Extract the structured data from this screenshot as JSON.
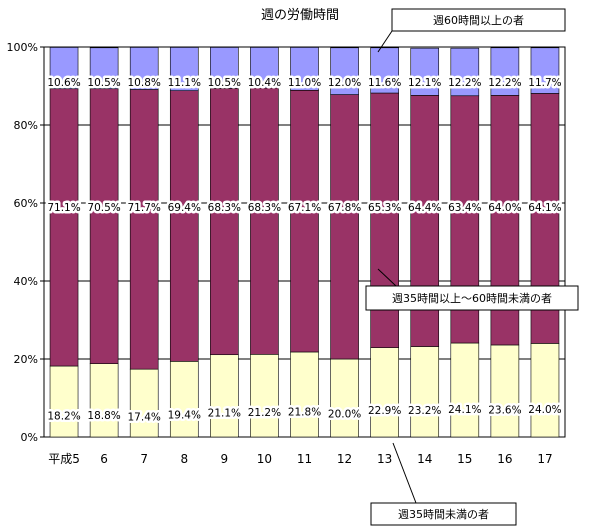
{
  "chart_data": {
    "type": "bar",
    "stacked": true,
    "percent": true,
    "title": "週の労働時間",
    "categories": [
      "平成5",
      "6",
      "7",
      "8",
      "9",
      "10",
      "11",
      "12",
      "13",
      "14",
      "15",
      "16",
      "17"
    ],
    "ylim": [
      0,
      100
    ],
    "yticks": [
      "0%",
      "20%",
      "40%",
      "60%",
      "80%",
      "100%"
    ],
    "grid": true,
    "series": [
      {
        "name": "週35時間未満の者",
        "color": "#FFFFCC",
        "values": [
          18.2,
          18.8,
          17.4,
          19.4,
          21.1,
          21.2,
          21.8,
          20.0,
          22.9,
          23.2,
          24.1,
          23.6,
          24.0
        ],
        "labels": [
          "18.2%",
          "18.8%",
          "17.4%",
          "19.4%",
          "21.1%",
          "21.2%",
          "21.8%",
          "20.0%",
          "22.9%",
          "23.2%",
          "24.1%",
          "23.6%",
          "24.0%"
        ]
      },
      {
        "name": "週35時間以上～60時間未満の者",
        "color": "#993366",
        "values": [
          71.1,
          70.5,
          71.7,
          69.4,
          68.3,
          68.3,
          67.1,
          67.8,
          65.3,
          64.4,
          63.4,
          64.0,
          64.1
        ],
        "labels": [
          "71.1%",
          "70.5%",
          "71.7%",
          "69.4%",
          "68.3%",
          "68.3%",
          "67.1%",
          "67.8%",
          "65.3%",
          "64.4%",
          "63.4%",
          "64.0%",
          "64.1%"
        ]
      },
      {
        "name": "週60時間以上の者",
        "color": "#9999FF",
        "values": [
          10.6,
          10.5,
          10.8,
          11.1,
          10.5,
          10.4,
          11.0,
          12.0,
          11.6,
          12.1,
          12.2,
          12.2,
          11.7
        ],
        "labels": [
          "10.6%",
          "10.5%",
          "10.8%",
          "11.1%",
          "10.5%",
          "10.4%",
          "11.0%",
          "12.0%",
          "11.6%",
          "12.1%",
          "12.2%",
          "12.2%",
          "11.7%"
        ]
      }
    ],
    "callouts": [
      {
        "series": 2,
        "text": "週60時間以上の者"
      },
      {
        "series": 1,
        "text": "週35時間以上～60時間未満の者"
      },
      {
        "series": 0,
        "text": "週35時間未満の者"
      }
    ]
  }
}
